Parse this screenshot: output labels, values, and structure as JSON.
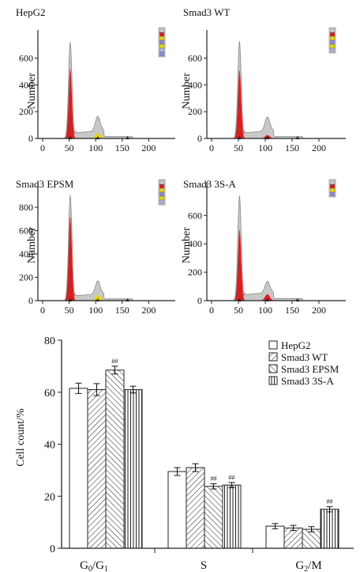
{
  "colors": {
    "axis": "#222222",
    "peak_fill": "#d81e1e",
    "envelope_fill": "#c8c8c8",
    "envelope_stroke": "#8a8a8a",
    "yellow_fill": "#e8d400",
    "bar_fill": "#ffffff",
    "bar_stroke": "#222222"
  },
  "chart_data": [
    {
      "type": "area",
      "panel": "top-left",
      "title": "HepG2",
      "ylabel": "Number",
      "xlim": [
        0,
        250
      ],
      "ylim": [
        0,
        750
      ],
      "x_ticks": [
        "0",
        "50",
        "100",
        "150",
        "200"
      ],
      "y_ticks": [
        "0",
        "200",
        "400",
        "600"
      ],
      "peaks": [
        {
          "name": "G0/G1",
          "x": 52,
          "height": 520,
          "envelope_height": 720,
          "color": "red"
        },
        {
          "name": "G2/M",
          "x": 104,
          "height": 40,
          "envelope_height": 110,
          "color": "yellow"
        }
      ],
      "legend_items": 7
    },
    {
      "type": "area",
      "panel": "top-right",
      "title": "Smad3 WT",
      "ylabel": "Number",
      "xlim": [
        0,
        250
      ],
      "ylim": [
        0,
        750
      ],
      "x_ticks": [
        "0",
        "50",
        "100",
        "150",
        "200"
      ],
      "y_ticks": [
        "0",
        "200",
        "400",
        "600"
      ],
      "peaks": [
        {
          "name": "G0/G1",
          "x": 52,
          "height": 510,
          "envelope_height": 725,
          "color": "red"
        },
        {
          "name": "G2/M",
          "x": 104,
          "height": 25,
          "envelope_height": 105,
          "color": "red"
        }
      ],
      "legend_items": 6
    },
    {
      "type": "area",
      "panel": "bottom-left",
      "title": "Smad3 EPSM",
      "ylabel": "Number",
      "xlim": [
        0,
        250
      ],
      "ylim": [
        0,
        950
      ],
      "x_ticks": [
        "0",
        "50",
        "100",
        "150",
        "200"
      ],
      "y_ticks": [
        "0",
        "200",
        "400",
        "600",
        "800"
      ],
      "peaks": [
        {
          "name": "G0/G1",
          "x": 52,
          "height": 720,
          "envelope_height": 905,
          "color": "red"
        },
        {
          "name": "G2/M",
          "x": 104,
          "height": 50,
          "envelope_height": 115,
          "color": "yellow"
        }
      ],
      "legend_items": 6
    },
    {
      "type": "area",
      "panel": "bottom-right",
      "title": "Smad3 3S-A",
      "ylabel": "Number",
      "xlim": [
        0,
        250
      ],
      "ylim": [
        0,
        780
      ],
      "x_ticks": [
        "0",
        "50",
        "100",
        "150",
        "200"
      ],
      "y_ticks": [
        "0",
        "200",
        "400",
        "600"
      ],
      "peaks": [
        {
          "name": "G0/G1",
          "x": 52,
          "height": 500,
          "envelope_height": 740,
          "color": "red"
        },
        {
          "name": "G2/M",
          "x": 104,
          "height": 45,
          "envelope_height": 80,
          "color": "red"
        }
      ],
      "legend_items": 4
    },
    {
      "type": "bar",
      "panel": "bottom",
      "ylabel": "Cell count/%",
      "ylim": [
        0,
        80
      ],
      "y_ticks": [
        "0",
        "20",
        "40",
        "60",
        "80"
      ],
      "categories": [
        "G0/G1",
        "S",
        "G2/M"
      ],
      "series": [
        {
          "name": "HepG2",
          "pattern": "plain",
          "values": [
            61.5,
            29.5,
            8.5
          ],
          "errors": [
            2.0,
            1.5,
            1.0
          ],
          "marks": [
            "",
            "",
            ""
          ]
        },
        {
          "name": "Smad3 WT",
          "pattern": "diag-right",
          "values": [
            61.0,
            31.0,
            7.8
          ],
          "errors": [
            2.3,
            1.5,
            1.0
          ],
          "marks": [
            "",
            "",
            ""
          ]
        },
        {
          "name": "Smad3 EPSM",
          "pattern": "diag-left",
          "values": [
            68.5,
            23.8,
            7.3
          ],
          "errors": [
            1.5,
            1.0,
            1.0
          ],
          "marks": [
            "##",
            "##",
            ""
          ]
        },
        {
          "name": "Smad3 3S-A",
          "pattern": "vertical",
          "values": [
            61.0,
            24.3,
            15.0
          ],
          "errors": [
            1.3,
            1.0,
            1.0
          ],
          "marks": [
            "",
            "##",
            "##"
          ]
        }
      ],
      "legend_position": "top-right"
    }
  ]
}
